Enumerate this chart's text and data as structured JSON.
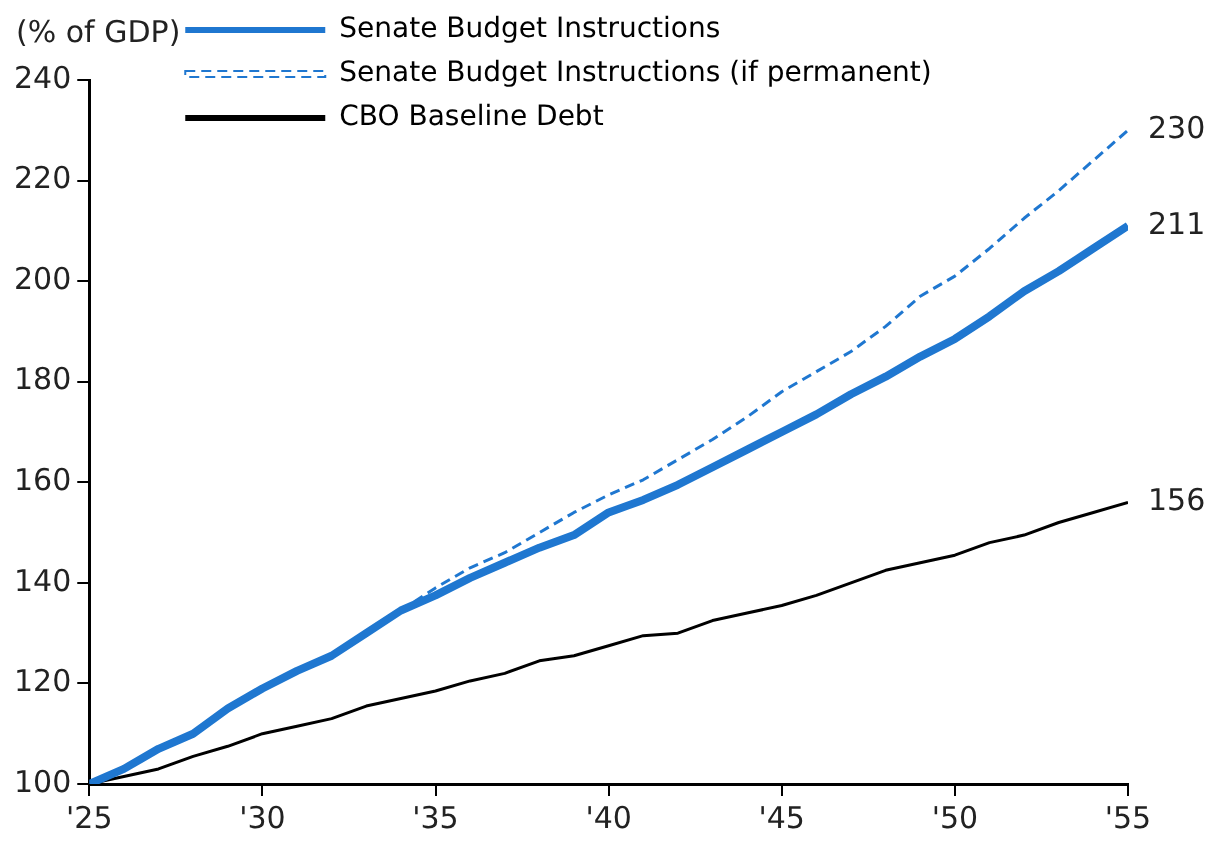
{
  "chart_data": {
    "type": "line",
    "ylabel": "(% of GDP)",
    "x": [
      2025,
      2026,
      2027,
      2028,
      2029,
      2030,
      2031,
      2032,
      2033,
      2034,
      2035,
      2036,
      2037,
      2038,
      2039,
      2040,
      2041,
      2042,
      2043,
      2044,
      2045,
      2046,
      2047,
      2048,
      2049,
      2050,
      2051,
      2052,
      2053,
      2054,
      2055
    ],
    "series": [
      {
        "name": "Senate Budget Instructions",
        "color": "#1f77d0",
        "line_style": "solid",
        "values": [
          100,
          103,
          107,
          110,
          115,
          119,
          122.5,
          125.5,
          130,
          134.5,
          137.5,
          141,
          144,
          147,
          149.5,
          154,
          156.5,
          159.5,
          163,
          166.5,
          170,
          173.5,
          177.5,
          181,
          185,
          188.5,
          193,
          198,
          202,
          206.5,
          211
        ],
        "value_labels": [
          null,
          null,
          null,
          null,
          null,
          null,
          null,
          null,
          null,
          null,
          null,
          null,
          null,
          null,
          null,
          null,
          null,
          null,
          null,
          null,
          null,
          null,
          null,
          null,
          null,
          null,
          null,
          null,
          null,
          null,
          "211"
        ]
      },
      {
        "name": "Senate Budget Instructions (if permanent)",
        "color": "#1f77d0",
        "line_style": "dashed",
        "x": [
          2034,
          2035,
          2036,
          2037,
          2038,
          2039,
          2040,
          2041,
          2042,
          2043,
          2044,
          2045,
          2046,
          2047,
          2048,
          2049,
          2050,
          2051,
          2052,
          2053,
          2054,
          2055
        ],
        "values": [
          134.5,
          139,
          143,
          146,
          150,
          154,
          157.5,
          160.5,
          164.5,
          168.5,
          173,
          178,
          182,
          186,
          191,
          197,
          201,
          206.5,
          212.5,
          218,
          224,
          230
        ],
        "value_labels": [
          null,
          null,
          null,
          null,
          null,
          null,
          null,
          null,
          null,
          null,
          null,
          null,
          null,
          null,
          null,
          null,
          null,
          null,
          null,
          null,
          null,
          "230"
        ]
      },
      {
        "name": "CBO Baseline Debt",
        "color": "#000000",
        "line_style": "solid",
        "values": [
          100,
          101.5,
          103,
          105.5,
          107.5,
          110,
          111.5,
          113,
          115.5,
          117,
          118.5,
          120.5,
          122,
          124.5,
          125.5,
          127.5,
          129.5,
          130,
          132.5,
          134,
          135.5,
          137.5,
          140,
          142.5,
          144,
          145.5,
          148,
          149.5,
          152,
          154,
          156
        ],
        "value_labels": [
          null,
          null,
          null,
          null,
          null,
          null,
          null,
          null,
          null,
          null,
          null,
          null,
          null,
          null,
          null,
          null,
          null,
          null,
          null,
          null,
          null,
          null,
          null,
          null,
          null,
          null,
          null,
          null,
          null,
          null,
          "156"
        ]
      }
    ],
    "xlim": [
      2025,
      2055
    ],
    "xticks": [
      {
        "value": 2025,
        "label": "'25"
      },
      {
        "value": 2030,
        "label": "'30"
      },
      {
        "value": 2035,
        "label": "'35"
      },
      {
        "value": 2040,
        "label": "'40"
      },
      {
        "value": 2045,
        "label": "'45"
      },
      {
        "value": 2050,
        "label": "'50"
      },
      {
        "value": 2055,
        "label": "'55"
      }
    ],
    "ylim": [
      100,
      240
    ],
    "yticks": [
      100,
      120,
      140,
      160,
      180,
      200,
      220,
      240
    ],
    "grid": false,
    "legend": "top left",
    "marker": "none"
  }
}
